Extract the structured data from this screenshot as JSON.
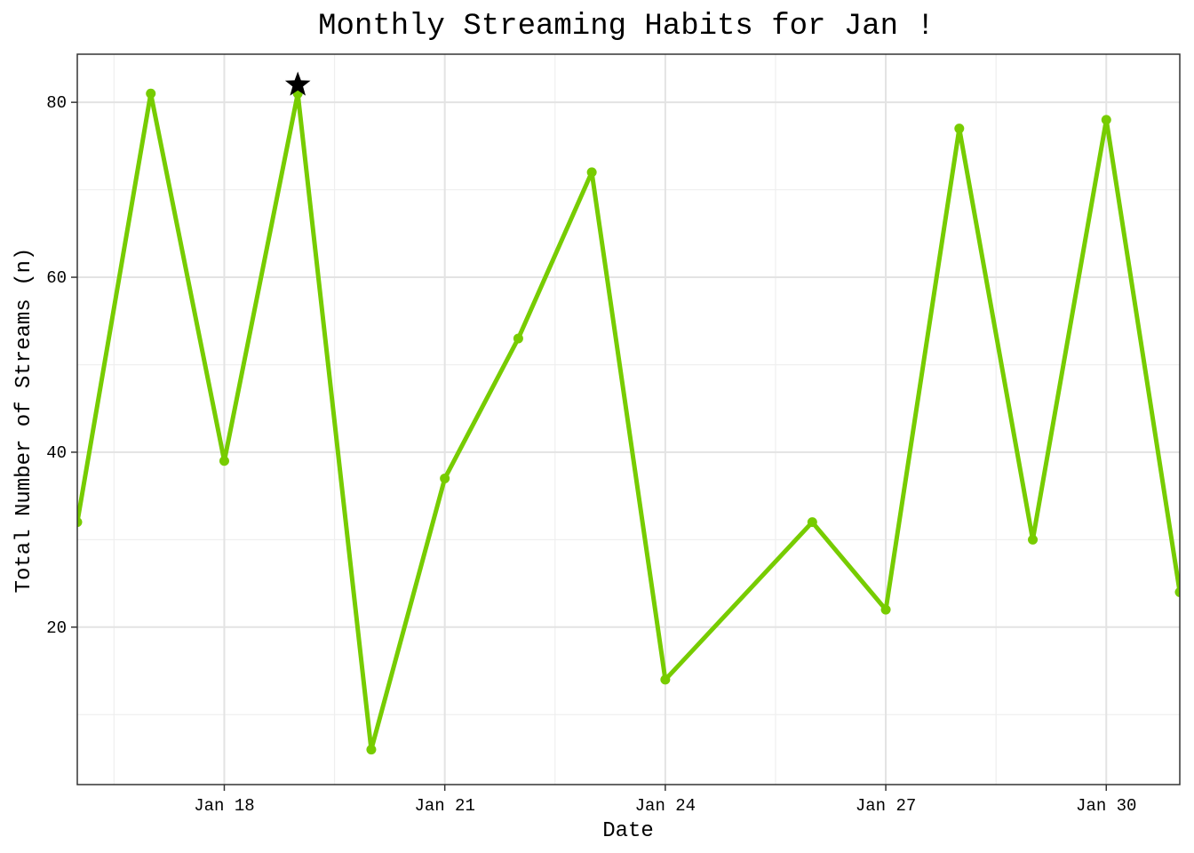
{
  "chart_data": {
    "type": "line",
    "title": "Monthly Streaming Habits for Jan !",
    "xlabel": "Date",
    "ylabel": "Total Number of Streams (n)",
    "x": [
      "Jan 16",
      "Jan 17",
      "Jan 18",
      "Jan 19",
      "Jan 20",
      "Jan 21",
      "Jan 22",
      "Jan 23",
      "Jan 24",
      "Jan 26",
      "Jan 27",
      "Jan 28",
      "Jan 29",
      "Jan 30",
      "Jan 31"
    ],
    "series": [
      {
        "values": [
          32,
          81,
          39,
          81,
          6,
          37,
          53,
          72,
          14,
          32,
          22,
          77,
          30,
          78,
          24
        ]
      }
    ],
    "x_ticks": [
      "Jan 18",
      "Jan 21",
      "Jan 24",
      "Jan 27",
      "Jan 30"
    ],
    "y_ticks": [
      20,
      40,
      60,
      80
    ],
    "xlim": [
      "Jan 16",
      "Jan 31"
    ],
    "ylim": [
      2,
      85.5
    ],
    "highlight": {
      "x": "Jan 19",
      "y": 82,
      "marker": "star-icon"
    },
    "grid": true,
    "line_color": "#77cc00",
    "highlight_color": "#000000"
  }
}
